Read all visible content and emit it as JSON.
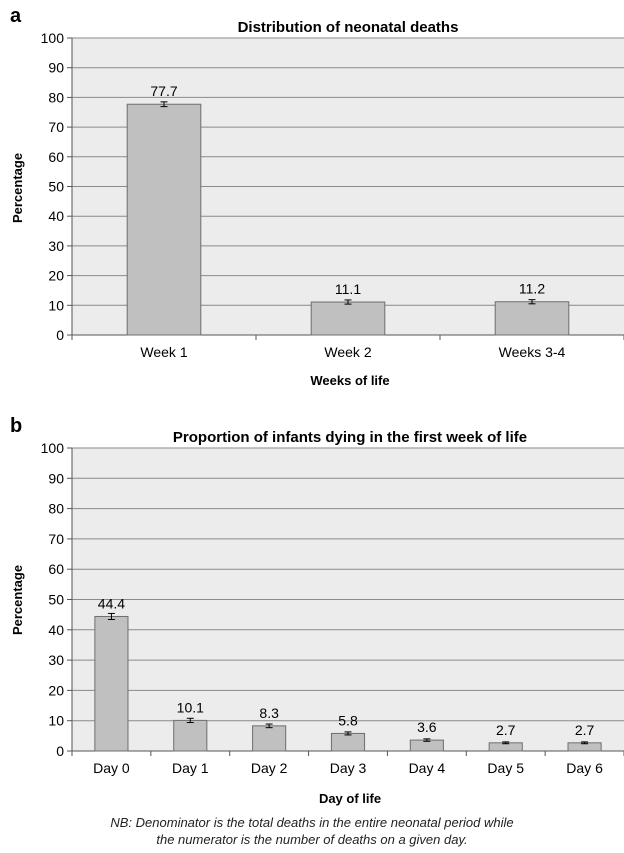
{
  "chart_data": [
    {
      "panel_label": "a",
      "type": "bar",
      "title": "Distribution of neonatal deaths",
      "xlabel": "Weeks of life",
      "ylabel": "Percentage",
      "categories": [
        "Week 1",
        "Week 2",
        "Weeks 3-4"
      ],
      "values": [
        77.7,
        11.1,
        11.2
      ],
      "data_labels": [
        "77.7",
        "11.1",
        "11.2"
      ],
      "error_bars": [
        0.8,
        0.7,
        0.7
      ],
      "ylim": [
        0,
        100
      ],
      "yticks": [
        0,
        10,
        20,
        30,
        40,
        50,
        60,
        70,
        80,
        90,
        100
      ],
      "grid": true,
      "bar_color": "#c0c0c0",
      "plot_background": "#ececec"
    },
    {
      "panel_label": "b",
      "type": "bar",
      "title": "Proportion of infants dying in the first week of life",
      "xlabel": "Day of life",
      "ylabel": "Percentage",
      "categories": [
        "Day 0",
        "Day 1",
        "Day 2",
        "Day 3",
        "Day 4",
        "Day 5",
        "Day 6"
      ],
      "values": [
        44.4,
        10.1,
        8.3,
        5.8,
        3.6,
        2.7,
        2.7
      ],
      "data_labels": [
        "44.4",
        "10.1",
        "8.3",
        "5.8",
        "3.6",
        "2.7",
        "2.7"
      ],
      "error_bars": [
        1.0,
        0.7,
        0.6,
        0.5,
        0.4,
        0.3,
        0.3
      ],
      "ylim": [
        0,
        100
      ],
      "yticks": [
        0,
        10,
        20,
        30,
        40,
        50,
        60,
        70,
        80,
        90,
        100
      ],
      "grid": true,
      "bar_color": "#c0c0c0",
      "plot_background": "#ececec"
    }
  ],
  "note": {
    "line1": "NB: Denominator is the total deaths in the entire neonatal period while",
    "line2": "the numerator is the number of deaths on a given day."
  }
}
